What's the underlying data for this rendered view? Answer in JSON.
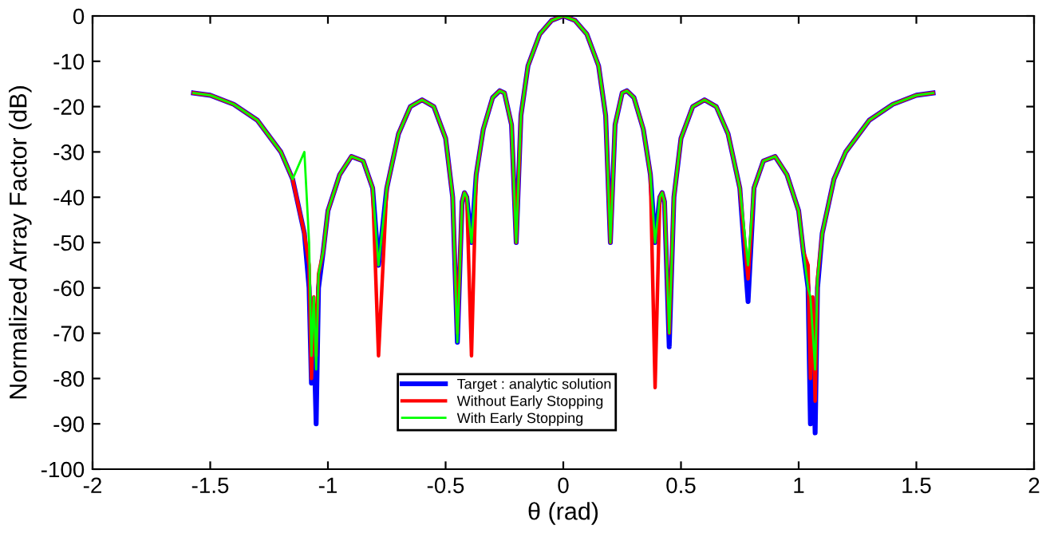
{
  "chart_data": {
    "type": "line",
    "xlabel": "θ (rad)",
    "ylabel": "Normalized Array Factor (dB)",
    "x": [
      -1.571,
      -1.5,
      -1.4,
      -1.3,
      -1.2,
      -1.15,
      -1.1,
      -1.08,
      -1.07,
      -1.06,
      -1.05,
      -1.04,
      -1.02,
      -1.0,
      -0.95,
      -0.9,
      -0.85,
      -0.81,
      -0.785,
      -0.75,
      -0.7,
      -0.65,
      -0.6,
      -0.55,
      -0.5,
      -0.47,
      -0.45,
      -0.43,
      -0.42,
      -0.41,
      -0.39,
      -0.37,
      -0.34,
      -0.3,
      -0.27,
      -0.25,
      -0.22,
      -0.2,
      -0.18,
      -0.15,
      -0.1,
      -0.05,
      0,
      0.05,
      0.1,
      0.15,
      0.18,
      0.2,
      0.22,
      0.25,
      0.27,
      0.3,
      0.34,
      0.37,
      0.39,
      0.41,
      0.42,
      0.43,
      0.45,
      0.47,
      0.5,
      0.55,
      0.6,
      0.65,
      0.7,
      0.75,
      0.785,
      0.81,
      0.85,
      0.9,
      0.95,
      1.0,
      1.02,
      1.04,
      1.05,
      1.06,
      1.07,
      1.08,
      1.1,
      1.15,
      1.2,
      1.3,
      1.4,
      1.5,
      1.571
    ],
    "series": [
      {
        "name": "Target : analytic solution",
        "color": "#0000ff",
        "values": [
          -17,
          -17.5,
          -19.5,
          -23,
          -30,
          -36,
          -48,
          -60,
          -81,
          -70,
          -90,
          -60,
          -52,
          -43,
          -35,
          -31,
          -32,
          -38,
          -55,
          -38,
          -26,
          -20,
          -18.5,
          -20,
          -27,
          -40,
          -72,
          -41,
          -39,
          -40,
          -50,
          -35,
          -25,
          -18,
          -16.5,
          -17,
          -24,
          -50,
          -22,
          -11,
          -4,
          -1,
          0,
          -1,
          -4,
          -11,
          -22,
          -50,
          -24,
          -17,
          -16.5,
          -18,
          -25,
          -35,
          -50,
          -40,
          -39,
          -41,
          -73,
          -40,
          -27,
          -20,
          -18.5,
          -20,
          -26,
          -38,
          -63,
          -38,
          -32,
          -31,
          -35,
          -43,
          -52,
          -60,
          -90,
          -70,
          -92,
          -60,
          -48,
          -36,
          -30,
          -23,
          -19.5,
          -17.5,
          -17
        ]
      },
      {
        "name": "Without Early Stopping",
        "color": "#ff0000",
        "values": [
          -17,
          -17.5,
          -19.5,
          -23,
          -30,
          -36,
          -48,
          -55,
          -80,
          -62,
          -75,
          -57,
          -52,
          -43,
          -35,
          -31,
          -32,
          -38,
          -75,
          -38,
          -26,
          -20,
          -18.5,
          -20,
          -27,
          -40,
          -70,
          -41,
          -39,
          -40,
          -75,
          -35,
          -25,
          -18,
          -16.5,
          -17,
          -24,
          -50,
          -22,
          -11,
          -4,
          -1,
          0,
          -1,
          -4,
          -11,
          -22,
          -50,
          -24,
          -17,
          -16.5,
          -18,
          -25,
          -35,
          -82,
          -40,
          -39,
          -41,
          -70,
          -40,
          -27,
          -20,
          -18.5,
          -20,
          -26,
          -38,
          -58,
          -38,
          -32,
          -31,
          -35,
          -43,
          -52,
          -55,
          -80,
          -62,
          -85,
          -58,
          -48,
          -36,
          -30,
          -23,
          -19.5,
          -17.5,
          -17
        ]
      },
      {
        "name": "With Early Stopping",
        "color": "#00ff00",
        "values": [
          -17,
          -17.5,
          -19.5,
          -23,
          -30,
          -36,
          -30,
          -50,
          -75,
          -62,
          -78,
          -57,
          -52,
          -43,
          -35,
          -31,
          -32,
          -38,
          -55,
          -38,
          -26,
          -20,
          -18.5,
          -20,
          -27,
          -40,
          -72,
          -41,
          -39,
          -40,
          -50,
          -35,
          -25,
          -18,
          -16.5,
          -17,
          -24,
          -50,
          -22,
          -11,
          -4,
          -1,
          0,
          -1,
          -4,
          -11,
          -22,
          -50,
          -24,
          -17,
          -16.5,
          -18,
          -25,
          -35,
          -50,
          -40,
          -39,
          -41,
          -70,
          -40,
          -27,
          -20,
          -18.5,
          -20,
          -26,
          -38,
          -55,
          -38,
          -32,
          -31,
          -35,
          -43,
          -52,
          -60,
          -62,
          -70,
          -78,
          -58,
          -48,
          -36,
          -30,
          -23,
          -19.5,
          -17.5,
          -17
        ]
      }
    ],
    "xlim": [
      -2,
      2
    ],
    "xticks": [
      -2,
      -1.5,
      -1,
      -0.5,
      0,
      0.5,
      1,
      1.5,
      2
    ],
    "ylim": [
      -100,
      0
    ],
    "yticks": [
      -100,
      -90,
      -80,
      -70,
      -60,
      -50,
      -40,
      -30,
      -20,
      -10,
      0
    ],
    "legend": "bottom",
    "grid": false
  }
}
